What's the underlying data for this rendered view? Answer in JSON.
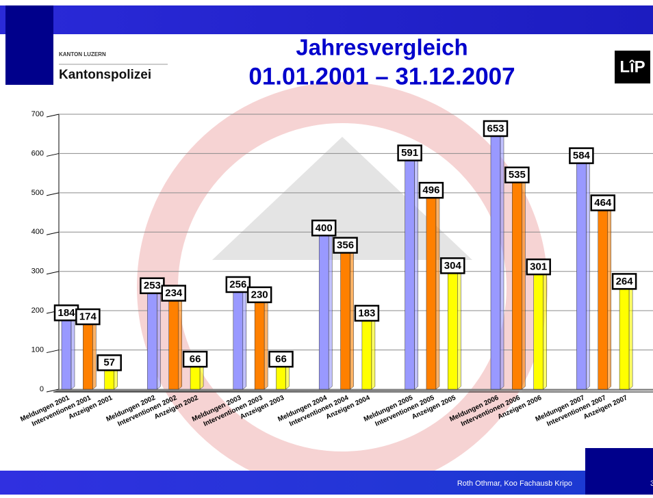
{
  "header": {
    "logo_top": "KANTON LUZERN",
    "logo_name": "Kantonspolizei",
    "badge": "LîP"
  },
  "chart_data": {
    "type": "bar",
    "title": [
      "Jahresvergleich",
      "01.01.2001 – 31.12.2007"
    ],
    "categories": [
      "Meldungen 2001",
      "Interventionen 2001",
      "Anzeigen 2001",
      null,
      "Meldungen 2002",
      "Interventionen 2002",
      "Anzeigen 2002",
      null,
      "Meldungen 2003",
      "Interventionen 2003",
      "Anzeigen 2003",
      null,
      "Meldungen 2004",
      "Interventionen 2004",
      "Anzeigen 2004",
      null,
      "Meldungen 2005",
      "Interventionen 2005",
      "Anzeigen 2005",
      null,
      "Meldungen 2006",
      "Interventionen 2006",
      "Anzeigen 2006",
      null,
      "Meldungen 2007",
      "Interventionen 2007",
      "Anzeigen 2007"
    ],
    "values": [
      184,
      174,
      57,
      null,
      253,
      234,
      66,
      null,
      256,
      230,
      66,
      null,
      400,
      356,
      183,
      null,
      591,
      496,
      304,
      null,
      653,
      535,
      301,
      null,
      584,
      464,
      264
    ],
    "colors": [
      "#9999ff",
      "#ff8000",
      "#ffff00",
      null,
      "#9999ff",
      "#ff8000",
      "#ffff00",
      null,
      "#9999ff",
      "#ff8000",
      "#ffff00",
      null,
      "#9999ff",
      "#ff8000",
      "#ffff00",
      null,
      "#9999ff",
      "#ff8000",
      "#ffff00",
      null,
      "#9999ff",
      "#ff8000",
      "#ffff00",
      null,
      "#9999ff",
      "#ff8000",
      "#ffff00"
    ],
    "ylim": [
      0,
      700
    ],
    "yticks": [
      0,
      100,
      200,
      300,
      400,
      500,
      600,
      700
    ],
    "grid": true
  },
  "footer": {
    "author": "Roth Othmar, Koo Fachausb Kripo",
    "page": "3"
  }
}
